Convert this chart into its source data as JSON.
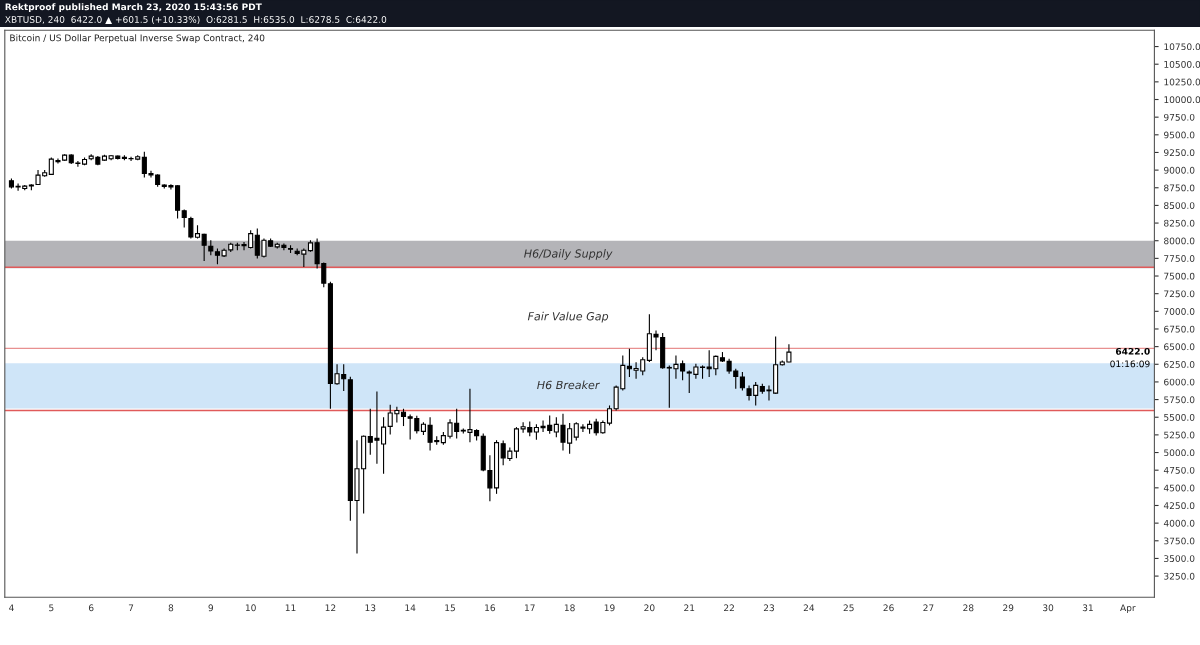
{
  "chart_data": {
    "type": "candlestick",
    "title": "Bitcoin / US Dollar Perpetual Inverse Swap Contract, 240",
    "annotations": [
      "Rektproof published March 23, 2020 15:43:56 PDT",
      "XBTUSD, 240  6422.0 ▲ +601.5 (+10.33%)  O:6281.5  H:6535.0  L:6278.5  C:6422.0",
      "6422.0",
      "01:16:09",
      "Fair Value Gap"
    ],
    "series": [
      {
        "color": "#000000",
        "x": [
          "2020-03-04T00:00",
          "2020-03-04T04:00",
          "2020-03-04T08:00",
          "2020-03-04T12:00",
          "2020-03-04T16:00",
          "2020-03-04T20:00",
          "2020-03-05T00:00",
          "2020-03-05T04:00",
          "2020-03-05T08:00",
          "2020-03-05T12:00",
          "2020-03-05T16:00",
          "2020-03-05T20:00",
          "2020-03-06T00:00",
          "2020-03-06T04:00",
          "2020-03-06T08:00",
          "2020-03-06T12:00",
          "2020-03-06T16:00",
          "2020-03-06T20:00",
          "2020-03-07T00:00",
          "2020-03-07T04:00",
          "2020-03-07T08:00",
          "2020-03-07T12:00",
          "2020-03-07T16:00",
          "2020-03-07T20:00",
          "2020-03-08T00:00",
          "2020-03-08T04:00",
          "2020-03-08T08:00",
          "2020-03-08T12:00",
          "2020-03-08T16:00",
          "2020-03-08T20:00",
          "2020-03-09T00:00",
          "2020-03-09T04:00",
          "2020-03-09T08:00",
          "2020-03-09T12:00",
          "2020-03-09T16:00",
          "2020-03-09T20:00",
          "2020-03-10T00:00",
          "2020-03-10T04:00",
          "2020-03-10T08:00",
          "2020-03-10T12:00",
          "2020-03-10T16:00",
          "2020-03-10T20:00",
          "2020-03-11T00:00",
          "2020-03-11T04:00",
          "2020-03-11T08:00",
          "2020-03-11T12:00",
          "2020-03-11T16:00",
          "2020-03-11T20:00",
          "2020-03-12T00:00",
          "2020-03-12T04:00",
          "2020-03-12T08:00",
          "2020-03-12T12:00",
          "2020-03-12T16:00",
          "2020-03-12T20:00",
          "2020-03-13T00:00",
          "2020-03-13T04:00",
          "2020-03-13T08:00",
          "2020-03-13T12:00",
          "2020-03-13T16:00",
          "2020-03-13T20:00",
          "2020-03-14T00:00",
          "2020-03-14T04:00",
          "2020-03-14T08:00",
          "2020-03-14T12:00",
          "2020-03-14T16:00",
          "2020-03-14T20:00",
          "2020-03-15T00:00",
          "2020-03-15T04:00",
          "2020-03-15T08:00",
          "2020-03-15T12:00",
          "2020-03-15T16:00",
          "2020-03-15T20:00",
          "2020-03-16T00:00",
          "2020-03-16T04:00",
          "2020-03-16T08:00",
          "2020-03-16T12:00",
          "2020-03-16T16:00",
          "2020-03-16T20:00",
          "2020-03-17T00:00",
          "2020-03-17T04:00",
          "2020-03-17T08:00",
          "2020-03-17T12:00",
          "2020-03-17T16:00",
          "2020-03-17T20:00",
          "2020-03-18T00:00",
          "2020-03-18T04:00",
          "2020-03-18T08:00",
          "2020-03-18T12:00",
          "2020-03-18T16:00",
          "2020-03-18T20:00",
          "2020-03-19T00:00",
          "2020-03-19T04:00",
          "2020-03-19T08:00",
          "2020-03-19T12:00",
          "2020-03-19T16:00",
          "2020-03-19T20:00",
          "2020-03-20T00:00",
          "2020-03-20T04:00",
          "2020-03-20T08:00",
          "2020-03-20T12:00",
          "2020-03-20T16:00",
          "2020-03-20T20:00",
          "2020-03-21T00:00",
          "2020-03-21T04:00",
          "2020-03-21T08:00",
          "2020-03-21T12:00",
          "2020-03-21T16:00",
          "2020-03-21T20:00",
          "2020-03-22T00:00",
          "2020-03-22T04:00",
          "2020-03-22T08:00",
          "2020-03-22T12:00",
          "2020-03-22T16:00",
          "2020-03-22T20:00",
          "2020-03-23T00:00",
          "2020-03-23T04:00",
          "2020-03-23T08:00",
          "2020-03-23T12:00"
        ],
        "ohlc": [
          [
            8848,
            8880,
            8740,
            8763
          ],
          [
            8770,
            8810,
            8707,
            8760
          ],
          [
            8740,
            8790,
            8716,
            8773
          ],
          [
            8775,
            8800,
            8715,
            8790
          ],
          [
            8796,
            9000,
            8790,
            8929
          ],
          [
            8920,
            9000,
            8905,
            8962
          ],
          [
            8940,
            9180,
            8930,
            9156
          ],
          [
            9120,
            9165,
            9094,
            9135
          ],
          [
            9141,
            9225,
            9130,
            9212
          ],
          [
            9212,
            9225,
            9085,
            9104
          ],
          [
            9094,
            9130,
            9047,
            9100
          ],
          [
            9085,
            9180,
            9070,
            9150
          ],
          [
            9160,
            9225,
            9140,
            9198
          ],
          [
            9180,
            9200,
            9070,
            9085
          ],
          [
            9141,
            9217,
            9130,
            9198
          ],
          [
            9160,
            9212,
            9140,
            9203
          ],
          [
            9198,
            9208,
            9150,
            9165
          ],
          [
            9165,
            9212,
            9140,
            9180
          ],
          [
            9160,
            9189,
            9130,
            9165
          ],
          [
            9155,
            9212,
            9140,
            9189
          ],
          [
            9180,
            9260,
            8895,
            8952
          ],
          [
            8950,
            8990,
            8895,
            8930
          ],
          [
            8930,
            8943,
            8763,
            8796
          ],
          [
            8790,
            8800,
            8740,
            8770
          ],
          [
            8780,
            8800,
            8725,
            8760
          ],
          [
            8777,
            8787,
            8314,
            8432
          ],
          [
            8423,
            8442,
            8187,
            8328
          ],
          [
            8314,
            8338,
            8030,
            8054
          ],
          [
            8050,
            8220,
            8030,
            8100
          ],
          [
            8090,
            8100,
            7714,
            7936
          ],
          [
            7922,
            8007,
            7794,
            7856
          ],
          [
            7842,
            7889,
            7667,
            7794
          ],
          [
            7785,
            7889,
            7770,
            7865
          ],
          [
            7870,
            7970,
            7840,
            7950
          ],
          [
            7940,
            7970,
            7865,
            7935
          ],
          [
            7930,
            7983,
            7865,
            7945
          ],
          [
            7903,
            8149,
            7889,
            8101
          ],
          [
            8078,
            8172,
            7747,
            7794
          ],
          [
            7780,
            8030,
            7761,
            8007
          ],
          [
            7998,
            8030,
            7912,
            7922
          ],
          [
            7912,
            7970,
            7889,
            7950
          ],
          [
            7936,
            7960,
            7865,
            7903
          ],
          [
            7890,
            7936,
            7827,
            7880
          ],
          [
            7851,
            7889,
            7794,
            7818
          ],
          [
            7810,
            7889,
            7629,
            7865
          ],
          [
            7860,
            8007,
            7842,
            7970
          ],
          [
            7970,
            8031,
            7605,
            7676
          ],
          [
            7676,
            7690,
            7340,
            7400
          ],
          [
            7390,
            7420,
            5620,
            5980
          ],
          [
            5975,
            6250,
            5960,
            6115
          ],
          [
            6105,
            6250,
            5870,
            6045
          ],
          [
            6030,
            6075,
            4035,
            4320
          ],
          [
            4320,
            5175,
            3570,
            4770
          ],
          [
            4770,
            5240,
            4135,
            5230
          ],
          [
            5225,
            5620,
            4970,
            5145
          ],
          [
            5200,
            5865,
            4840,
            5175
          ],
          [
            5120,
            5500,
            4700,
            5360
          ],
          [
            5370,
            5675,
            5255,
            5560
          ],
          [
            5550,
            5650,
            5425,
            5595
          ],
          [
            5570,
            5620,
            5375,
            5510
          ],
          [
            5505,
            5540,
            5185,
            5485
          ],
          [
            5480,
            5520,
            5270,
            5310
          ],
          [
            5300,
            5430,
            5250,
            5400
          ],
          [
            5385,
            5500,
            5030,
            5145
          ],
          [
            5155,
            5230,
            5110,
            5170
          ],
          [
            5140,
            5290,
            5110,
            5240
          ],
          [
            5230,
            5470,
            5200,
            5420
          ],
          [
            5415,
            5620,
            5200,
            5300
          ],
          [
            5305,
            5340,
            5270,
            5315
          ],
          [
            5285,
            5905,
            5145,
            5325
          ],
          [
            5310,
            5330,
            5170,
            5240
          ],
          [
            5230,
            5270,
            4735,
            4755
          ],
          [
            4745,
            4960,
            4310,
            4500
          ],
          [
            4500,
            5175,
            4415,
            5140
          ],
          [
            5125,
            5170,
            4820,
            4925
          ],
          [
            4915,
            5070,
            4880,
            5020
          ],
          [
            5020,
            5360,
            4920,
            5335
          ],
          [
            5335,
            5430,
            5280,
            5365
          ],
          [
            5355,
            5440,
            5230,
            5290
          ],
          [
            5290,
            5400,
            5180,
            5355
          ],
          [
            5370,
            5454,
            5290,
            5352
          ],
          [
            5384,
            5525,
            5265,
            5313
          ],
          [
            5290,
            5500,
            5218,
            5398
          ],
          [
            5384,
            5549,
            5029,
            5147
          ],
          [
            5133,
            5420,
            4982,
            5336
          ],
          [
            5218,
            5430,
            5170,
            5407
          ],
          [
            5345,
            5400,
            5290,
            5360
          ],
          [
            5336,
            5454,
            5265,
            5398
          ],
          [
            5431,
            5480,
            5240,
            5280
          ],
          [
            5280,
            5454,
            5265,
            5426
          ],
          [
            5417,
            5667,
            5384,
            5620
          ],
          [
            5620,
            5950,
            5596,
            5927
          ],
          [
            5903,
            6376,
            5880,
            6234
          ],
          [
            6220,
            6470,
            6069,
            6187
          ],
          [
            6165,
            6280,
            6045,
            6190
          ],
          [
            6154,
            6350,
            6093,
            6315
          ],
          [
            6305,
            6957,
            6282,
            6683
          ],
          [
            6674,
            6730,
            6447,
            6636
          ],
          [
            6627,
            6693,
            6187,
            6201
          ],
          [
            6205,
            6234,
            5634,
            6197
          ],
          [
            6187,
            6376,
            6045,
            6248
          ],
          [
            6258,
            6305,
            6022,
            6154
          ],
          [
            6140,
            6163,
            5842,
            6126
          ],
          [
            6107,
            6258,
            6045,
            6211
          ],
          [
            6205,
            6234,
            6045,
            6211
          ],
          [
            6211,
            6447,
            6069,
            6187
          ],
          [
            6187,
            6376,
            6093,
            6362
          ],
          [
            6343,
            6423,
            6282,
            6296
          ],
          [
            6291,
            6329,
            6116,
            6154
          ],
          [
            6154,
            6187,
            5903,
            6078
          ],
          [
            6069,
            6140,
            5880,
            5918
          ],
          [
            5903,
            5951,
            5738,
            5809
          ],
          [
            5809,
            5998,
            5667,
            5951
          ],
          [
            5936,
            5975,
            5833,
            5870
          ],
          [
            5875,
            5951,
            5738,
            5885
          ],
          [
            5842,
            6645,
            5833,
            6244
          ],
          [
            6244,
            6305,
            6234,
            6281.5
          ],
          [
            6281.5,
            6535,
            6278.5,
            6422
          ]
        ]
      }
    ],
    "ref_lines": [
      {
        "axis": "y",
        "value": 7624,
        "color": "#e05a5a"
      },
      {
        "axis": "y",
        "value": 5596,
        "color": "#e05a5a"
      },
      {
        "axis": "y",
        "value": 6475,
        "color": "#e89090"
      }
    ],
    "bands": [
      {
        "axis": "y",
        "from": 7610,
        "to": 8000,
        "label": "H6/Daily Supply",
        "color": "#b4b4b8"
      },
      {
        "axis": "y",
        "from": 5624,
        "to": 6263,
        "label": "H6 Breaker",
        "color": "#cfe5f8"
      }
    ],
    "xlim": [
      "2020-03-03T20:00",
      "2020-04-01T16:00"
    ],
    "xticks": [
      {
        "value": "2020-03-04",
        "label": "4"
      },
      {
        "value": "2020-03-05",
        "label": "5"
      },
      {
        "value": "2020-03-06",
        "label": "6"
      },
      {
        "value": "2020-03-07",
        "label": "7"
      },
      {
        "value": "2020-03-08",
        "label": "8"
      },
      {
        "value": "2020-03-09",
        "label": "9"
      },
      {
        "value": "2020-03-10",
        "label": "10"
      },
      {
        "value": "2020-03-11",
        "label": "11"
      },
      {
        "value": "2020-03-12",
        "label": "12"
      },
      {
        "value": "2020-03-13",
        "label": "13"
      },
      {
        "value": "2020-03-14",
        "label": "14"
      },
      {
        "value": "2020-03-15",
        "label": "15"
      },
      {
        "value": "2020-03-16",
        "label": "16"
      },
      {
        "value": "2020-03-17",
        "label": "17"
      },
      {
        "value": "2020-03-18",
        "label": "18"
      },
      {
        "value": "2020-03-19",
        "label": "19"
      },
      {
        "value": "2020-03-20",
        "label": "20"
      },
      {
        "value": "2020-03-21",
        "label": "21"
      },
      {
        "value": "2020-03-22",
        "label": "22"
      },
      {
        "value": "2020-03-23",
        "label": "23"
      },
      {
        "value": "2020-03-24",
        "label": "24"
      },
      {
        "value": "2020-03-25",
        "label": "25"
      },
      {
        "value": "2020-03-26",
        "label": "26"
      },
      {
        "value": "2020-03-27",
        "label": "27"
      },
      {
        "value": "2020-03-28",
        "label": "28"
      },
      {
        "value": "2020-03-29",
        "label": "29"
      },
      {
        "value": "2020-03-30",
        "label": "30"
      },
      {
        "value": "2020-03-31",
        "label": "31"
      },
      {
        "value": "2020-04-01",
        "label": "Apr"
      }
    ],
    "ylim": [
      2950,
      10980
    ],
    "yticks": [
      {
        "value": 3250,
        "label": "3250.0"
      },
      {
        "value": 3500,
        "label": "3500.0"
      },
      {
        "value": 3750,
        "label": "3750.0"
      },
      {
        "value": 4000,
        "label": "4000.0"
      },
      {
        "value": 4250,
        "label": "4250.0"
      },
      {
        "value": 4500,
        "label": "4500.0"
      },
      {
        "value": 4750,
        "label": "4750.0"
      },
      {
        "value": 5000,
        "label": "5000.0"
      },
      {
        "value": 5250,
        "label": "5250.0"
      },
      {
        "value": 5500,
        "label": "5500.0"
      },
      {
        "value": 5750,
        "label": "5750.0"
      },
      {
        "value": 6000,
        "label": "6000.0"
      },
      {
        "value": 6250,
        "label": "6250.0"
      },
      {
        "value": 6500,
        "label": "6500.0"
      },
      {
        "value": 6750,
        "label": "6750.0"
      },
      {
        "value": 7000,
        "label": "7000.0"
      },
      {
        "value": 7250,
        "label": "7250.0"
      },
      {
        "value": 7500,
        "label": "7500.0"
      },
      {
        "value": 7750,
        "label": "7750.0"
      },
      {
        "value": 8000,
        "label": "8000.0"
      },
      {
        "value": 8250,
        "label": "8250.0"
      },
      {
        "value": 8500,
        "label": "8500.0"
      },
      {
        "value": 8750,
        "label": "8750.0"
      },
      {
        "value": 9000,
        "label": "9000.0"
      },
      {
        "value": 9250,
        "label": "9250.0"
      },
      {
        "value": 9500,
        "label": "9500.0"
      },
      {
        "value": 9750,
        "label": "9750.0"
      },
      {
        "value": 10000,
        "label": "10000.0"
      },
      {
        "value": 10250,
        "label": "10250.0"
      },
      {
        "value": 10500,
        "label": "10500.0"
      },
      {
        "value": 10750,
        "label": "10750.0"
      }
    ],
    "grid": false,
    "legend": false
  }
}
